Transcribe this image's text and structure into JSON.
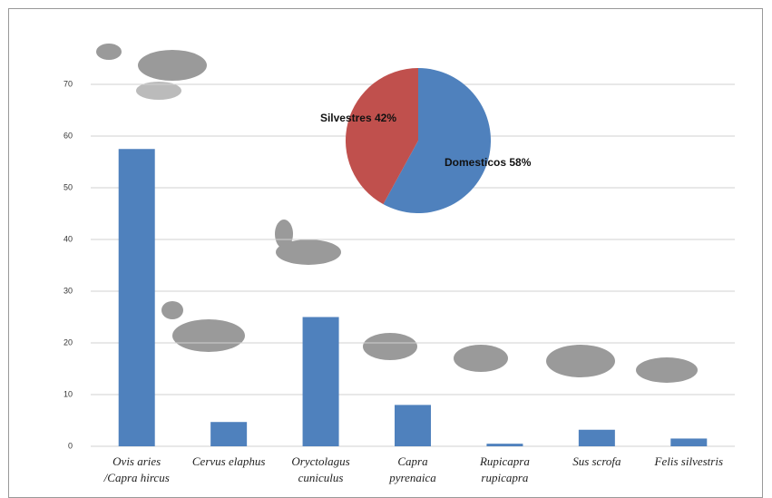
{
  "chart_data": [
    {
      "type": "bar",
      "categories": [
        [
          "Ovis aries",
          "/Capra hircus"
        ],
        [
          "Cervus elaphus"
        ],
        [
          "Oryctolagus",
          "cuniculus"
        ],
        [
          "Capra",
          "pyrenaica"
        ],
        [
          "Rupicapra",
          "rupicapra"
        ],
        [
          "Sus scrofa"
        ],
        [
          "Felis silvestris"
        ]
      ],
      "values": [
        57.5,
        4.7,
        25,
        8,
        0.5,
        3.2,
        1.5
      ],
      "color": "#4f81bd",
      "ylim": [
        0,
        70
      ],
      "yticks": [
        0,
        10,
        20,
        30,
        40,
        50,
        60,
        70
      ],
      "grid": true
    },
    {
      "type": "pie",
      "values": [
        58,
        42
      ],
      "value_labels": [
        "Domesticos 58%",
        "Silvestres 42%"
      ],
      "colors": [
        "#4f81bd",
        "#c0504d"
      ]
    }
  ]
}
